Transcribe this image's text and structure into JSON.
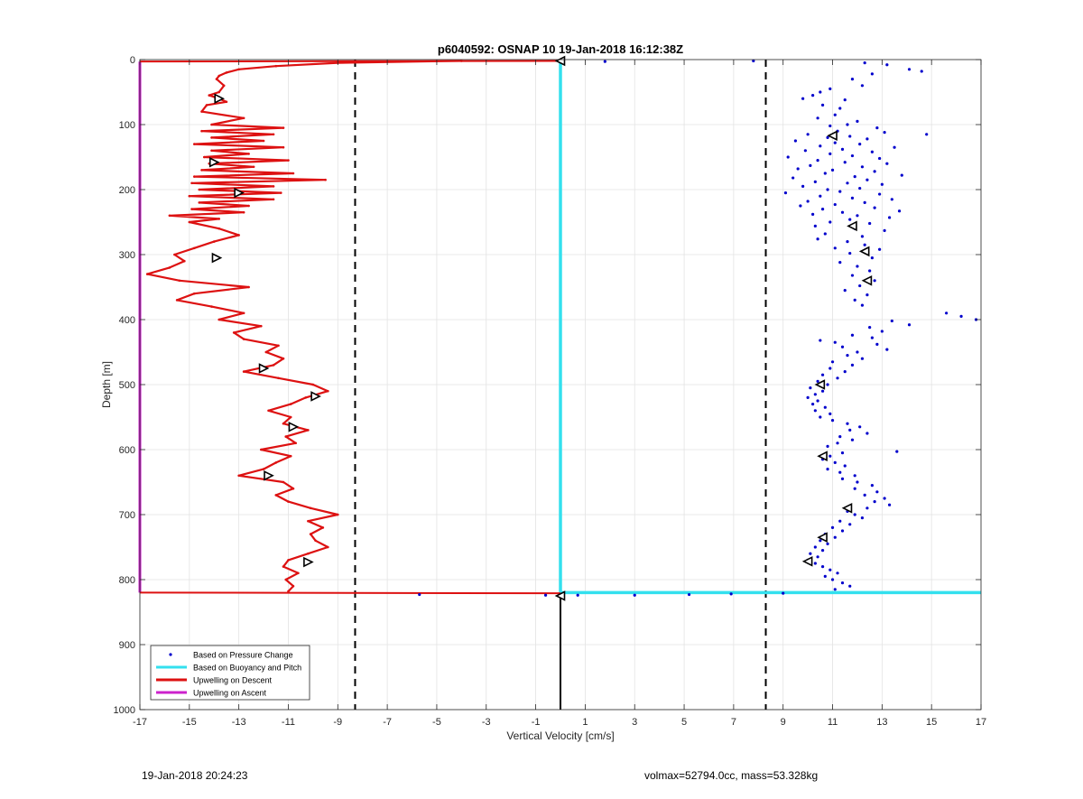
{
  "footer": {
    "timestamp": "19-Jan-2018 20:24:23",
    "summary": "volmax=52794.0cc, mass=53.328kg"
  },
  "colors": {
    "pressure": "#0000cc",
    "buoyancy": "#33e0ee",
    "descent": "#dd1111",
    "ascent": "#cc22cc",
    "grid": "#e3e3e3"
  },
  "chart_data": {
    "type": "line",
    "title": "p6040592: OSNAP 10 19-Jan-2018 16:12:38Z",
    "xlabel": "Vertical Velocity [cm/s]",
    "ylabel": "Depth [m]",
    "xlim": [
      -17,
      17
    ],
    "ylim": [
      0,
      1000
    ],
    "y_reversed": true,
    "grid": true,
    "xticks": [
      -17,
      -15,
      -13,
      -11,
      -9,
      -7,
      -5,
      -3,
      -1,
      1,
      3,
      5,
      7,
      9,
      11,
      13,
      15,
      17
    ],
    "yticks": [
      0,
      100,
      200,
      300,
      400,
      500,
      600,
      700,
      800,
      900,
      1000
    ],
    "legend_position": "bottom-left",
    "legend": [
      {
        "label": "Based on Pressure Change",
        "style": "dot",
        "color": "#0000cc"
      },
      {
        "label": "Based on Buoyancy and Pitch",
        "style": "line",
        "color": "#33e0ee"
      },
      {
        "label": "Upwelling on Descent",
        "style": "line",
        "color": "#dd1111"
      },
      {
        "label": "Upwelling on Ascent",
        "style": "line",
        "color": "#cc22cc"
      }
    ],
    "dashed_limits_x": [
      -8.3,
      8.3
    ],
    "series": [
      {
        "name": "Upwelling on Descent",
        "color": "#dd1111",
        "depth": [
          2,
          5,
          10,
          15,
          20,
          25,
          30,
          40,
          50,
          55,
          60,
          65,
          70,
          80,
          90,
          100,
          105,
          110,
          115,
          120,
          125,
          130,
          135,
          140,
          145,
          150,
          155,
          160,
          165,
          170,
          175,
          180,
          185,
          190,
          195,
          200,
          205,
          210,
          215,
          220,
          225,
          230,
          235,
          240,
          245,
          250,
          260,
          270,
          280,
          290,
          300,
          310,
          320,
          330,
          340,
          350,
          360,
          370,
          380,
          390,
          400,
          410,
          420,
          430,
          440,
          450,
          460,
          470,
          480,
          490,
          500,
          510,
          520,
          530,
          540,
          550,
          560,
          570,
          580,
          590,
          600,
          610,
          620,
          630,
          640,
          650,
          660,
          670,
          680,
          690,
          700,
          710,
          720,
          730,
          740,
          750,
          760,
          770,
          780,
          790,
          800,
          810,
          818
        ],
        "velocity": [
          -4,
          -9,
          -11.5,
          -13,
          -13.5,
          -13.8,
          -13.9,
          -13.6,
          -13.8,
          -14.2,
          -13.8,
          -13.5,
          -14.3,
          -14.5,
          -12.8,
          -14.1,
          -11.2,
          -14.5,
          -11.6,
          -14.1,
          -12.0,
          -14.8,
          -11.2,
          -14.1,
          -12.6,
          -14.4,
          -11.0,
          -14.2,
          -12.4,
          -14.5,
          -10.8,
          -14.8,
          -9.5,
          -14.9,
          -11.6,
          -14.6,
          -11.3,
          -15.0,
          -11.6,
          -14.6,
          -12.6,
          -14.9,
          -12.8,
          -15.8,
          -13.8,
          -15.0,
          -13.8,
          -13.0,
          -14.0,
          -14.8,
          -15.6,
          -15.2,
          -15.8,
          -16.7,
          -15.4,
          -12.6,
          -14.8,
          -15.5,
          -14.1,
          -12.8,
          -13.8,
          -12.1,
          -13.2,
          -12.8,
          -11.4,
          -11.9,
          -11.2,
          -11.6,
          -12.8,
          -11.4,
          -10.0,
          -9.4,
          -10.3,
          -10.9,
          -11.8,
          -10.9,
          -11.2,
          -10.2,
          -11.1,
          -10.7,
          -12.1,
          -10.9,
          -11.5,
          -12.0,
          -13.0,
          -11.2,
          -10.8,
          -11.5,
          -11.0,
          -10.1,
          -9.0,
          -10.2,
          -9.6,
          -10.1,
          -9.9,
          -9.4,
          -10.2,
          -11.0,
          -11.2,
          -10.6,
          -11.1,
          -10.8,
          -11.0
        ]
      },
      {
        "name": "Upwelling on Ascent",
        "color": "#cc22cc",
        "depth": [
          3,
          820
        ],
        "velocity": [
          -17,
          -17
        ]
      },
      {
        "name": "Based on Buoyancy and Pitch",
        "color": "#33e0ee",
        "depth": [
          2,
          820,
          820
        ],
        "velocity": [
          0,
          0,
          17
        ]
      },
      {
        "name": "Based on Pressure Change",
        "color": "#0000cc",
        "style": "scatter",
        "points": [
          [
            12.3,
            5
          ],
          [
            13.2,
            8
          ],
          [
            14.1,
            15
          ],
          [
            14.6,
            18
          ],
          [
            12.6,
            22
          ],
          [
            11.8,
            30
          ],
          [
            12.2,
            40
          ],
          [
            10.9,
            45
          ],
          [
            10.5,
            50
          ],
          [
            10.2,
            55
          ],
          [
            9.8,
            60
          ],
          [
            11.5,
            62
          ],
          [
            10.6,
            70
          ],
          [
            11.3,
            75
          ],
          [
            11.1,
            85
          ],
          [
            10.4,
            90
          ],
          [
            12.0,
            95
          ],
          [
            11.6,
            100
          ],
          [
            10.9,
            102
          ],
          [
            12.8,
            105
          ],
          [
            11.2,
            110
          ],
          [
            13.1,
            112
          ],
          [
            10.0,
            115
          ],
          [
            14.8,
            115
          ],
          [
            11.7,
            118
          ],
          [
            10.8,
            120
          ],
          [
            12.4,
            122
          ],
          [
            9.5,
            125
          ],
          [
            11.1,
            128
          ],
          [
            12.1,
            130
          ],
          [
            10.5,
            133
          ],
          [
            13.5,
            135
          ],
          [
            11.4,
            138
          ],
          [
            9.9,
            140
          ],
          [
            12.6,
            142
          ],
          [
            10.9,
            145
          ],
          [
            11.8,
            148
          ],
          [
            9.2,
            150
          ],
          [
            12.9,
            152
          ],
          [
            10.4,
            155
          ],
          [
            11.5,
            158
          ],
          [
            13.2,
            160
          ],
          [
            10.1,
            163
          ],
          [
            12.2,
            165
          ],
          [
            9.6,
            168
          ],
          [
            11.0,
            170
          ],
          [
            12.7,
            172
          ],
          [
            10.7,
            175
          ],
          [
            13.8,
            178
          ],
          [
            11.9,
            180
          ],
          [
            9.4,
            182
          ],
          [
            12.4,
            185
          ],
          [
            10.3,
            188
          ],
          [
            11.6,
            190
          ],
          [
            13.0,
            192
          ],
          [
            9.8,
            195
          ],
          [
            12.1,
            198
          ],
          [
            10.8,
            200
          ],
          [
            11.3,
            203
          ],
          [
            9.1,
            205
          ],
          [
            12.9,
            207
          ],
          [
            10.5,
            210
          ],
          [
            11.8,
            213
          ],
          [
            13.4,
            215
          ],
          [
            10.0,
            218
          ],
          [
            12.3,
            220
          ],
          [
            11.1,
            223
          ],
          [
            9.7,
            225
          ],
          [
            12.7,
            228
          ],
          [
            10.6,
            230
          ],
          [
            13.7,
            233
          ],
          [
            11.4,
            235
          ],
          [
            10.2,
            238
          ],
          [
            12.0,
            240
          ],
          [
            13.3,
            243
          ],
          [
            11.7,
            246
          ],
          [
            10.9,
            250
          ],
          [
            12.5,
            252
          ],
          [
            10.3,
            256
          ],
          [
            11.9,
            260
          ],
          [
            13.1,
            263
          ],
          [
            10.7,
            268
          ],
          [
            12.2,
            272
          ],
          [
            10.4,
            276
          ],
          [
            11.6,
            280
          ],
          [
            12.3,
            285
          ],
          [
            11.1,
            290
          ],
          [
            12.9,
            292
          ],
          [
            11.7,
            298
          ],
          [
            12.6,
            305
          ],
          [
            11.3,
            312
          ],
          [
            12.0,
            318
          ],
          [
            12.5,
            325
          ],
          [
            11.8,
            332
          ],
          [
            12.7,
            340
          ],
          [
            12.1,
            348
          ],
          [
            11.5,
            355
          ],
          [
            12.4,
            362
          ],
          [
            11.9,
            370
          ],
          [
            12.2,
            378
          ],
          [
            15.6,
            390
          ],
          [
            16.2,
            395
          ],
          [
            16.8,
            400
          ],
          [
            13.4,
            402
          ],
          [
            14.1,
            408
          ],
          [
            12.5,
            412
          ],
          [
            13.0,
            418
          ],
          [
            11.8,
            424
          ],
          [
            12.6,
            428
          ],
          [
            10.5,
            432
          ],
          [
            11.1,
            435
          ],
          [
            12.8,
            438
          ],
          [
            11.4,
            442
          ],
          [
            13.2,
            446
          ],
          [
            12.0,
            450
          ],
          [
            11.6,
            455
          ],
          [
            12.2,
            460
          ],
          [
            11.0,
            465
          ],
          [
            11.8,
            470
          ],
          [
            10.9,
            475
          ],
          [
            11.5,
            480
          ],
          [
            10.6,
            485
          ],
          [
            11.2,
            490
          ],
          [
            10.4,
            495
          ],
          [
            10.8,
            500
          ],
          [
            10.1,
            505
          ],
          [
            10.6,
            510
          ],
          [
            10.3,
            515
          ],
          [
            10.0,
            520
          ],
          [
            10.4,
            525
          ],
          [
            10.2,
            530
          ],
          [
            10.7,
            535
          ],
          [
            10.3,
            540
          ],
          [
            10.9,
            545
          ],
          [
            10.5,
            550
          ],
          [
            11.0,
            555
          ],
          [
            11.6,
            560
          ],
          [
            12.1,
            565
          ],
          [
            11.7,
            570
          ],
          [
            12.4,
            575
          ],
          [
            11.3,
            580
          ],
          [
            11.8,
            585
          ],
          [
            11.2,
            590
          ],
          [
            10.8,
            595
          ],
          [
            13.6,
            603
          ],
          [
            11.4,
            605
          ],
          [
            10.9,
            610
          ],
          [
            10.6,
            615
          ],
          [
            11.1,
            620
          ],
          [
            11.5,
            625
          ],
          [
            10.8,
            630
          ],
          [
            11.3,
            635
          ],
          [
            11.9,
            640
          ],
          [
            11.4,
            645
          ],
          [
            12.0,
            650
          ],
          [
            12.6,
            655
          ],
          [
            11.9,
            660
          ],
          [
            12.8,
            665
          ],
          [
            12.3,
            670
          ],
          [
            13.1,
            675
          ],
          [
            12.7,
            680
          ],
          [
            13.3,
            685
          ],
          [
            12.4,
            690
          ],
          [
            11.6,
            695
          ],
          [
            11.9,
            700
          ],
          [
            12.2,
            705
          ],
          [
            11.3,
            710
          ],
          [
            11.7,
            715
          ],
          [
            11.0,
            720
          ],
          [
            11.4,
            725
          ],
          [
            10.7,
            730
          ],
          [
            11.1,
            735
          ],
          [
            10.5,
            740
          ],
          [
            10.8,
            745
          ],
          [
            10.3,
            750
          ],
          [
            10.6,
            755
          ],
          [
            10.1,
            760
          ],
          [
            10.4,
            765
          ],
          [
            10.0,
            770
          ],
          [
            10.3,
            775
          ],
          [
            10.6,
            780
          ],
          [
            10.9,
            785
          ],
          [
            11.2,
            790
          ],
          [
            10.7,
            795
          ],
          [
            11.0,
            800
          ],
          [
            11.4,
            805
          ],
          [
            11.7,
            810
          ],
          [
            11.1,
            815
          ],
          [
            -5.7,
            823
          ],
          [
            -0.6,
            824
          ],
          [
            0.7,
            824
          ],
          [
            3.0,
            824
          ],
          [
            5.2,
            823
          ],
          [
            6.9,
            822
          ],
          [
            9.0,
            821
          ],
          [
            1.8,
            3
          ],
          [
            7.8,
            2
          ]
        ]
      }
    ],
    "markers": [
      {
        "shape": "triangle-right",
        "v": -13.8,
        "depth": 60
      },
      {
        "shape": "triangle-right",
        "v": -14.0,
        "depth": 158
      },
      {
        "shape": "triangle-right",
        "v": -13.0,
        "depth": 205
      },
      {
        "shape": "triangle-right",
        "v": -13.9,
        "depth": 305
      },
      {
        "shape": "triangle-right",
        "v": -12.0,
        "depth": 475
      },
      {
        "shape": "triangle-right",
        "v": -9.9,
        "depth": 518
      },
      {
        "shape": "triangle-right",
        "v": -10.8,
        "depth": 565
      },
      {
        "shape": "triangle-right",
        "v": -11.8,
        "depth": 640
      },
      {
        "shape": "triangle-right",
        "v": -10.2,
        "depth": 773
      },
      {
        "shape": "triangle-left",
        "v": 0,
        "depth": 2
      },
      {
        "shape": "triangle-left",
        "v": 11.0,
        "depth": 117
      },
      {
        "shape": "triangle-left",
        "v": 11.8,
        "depth": 256
      },
      {
        "shape": "triangle-left",
        "v": 12.3,
        "depth": 295
      },
      {
        "shape": "triangle-left",
        "v": 12.4,
        "depth": 340
      },
      {
        "shape": "triangle-left",
        "v": 10.5,
        "depth": 500
      },
      {
        "shape": "triangle-left",
        "v": 10.6,
        "depth": 610
      },
      {
        "shape": "triangle-left",
        "v": 11.6,
        "depth": 690
      },
      {
        "shape": "triangle-left",
        "v": 10.6,
        "depth": 735
      },
      {
        "shape": "triangle-left",
        "v": 10.0,
        "depth": 772
      },
      {
        "shape": "triangle-left",
        "v": 0,
        "depth": 825
      }
    ],
    "vertical_reference": {
      "v": 0,
      "from_depth": 823,
      "to_depth": 1000,
      "color": "#000000"
    }
  }
}
